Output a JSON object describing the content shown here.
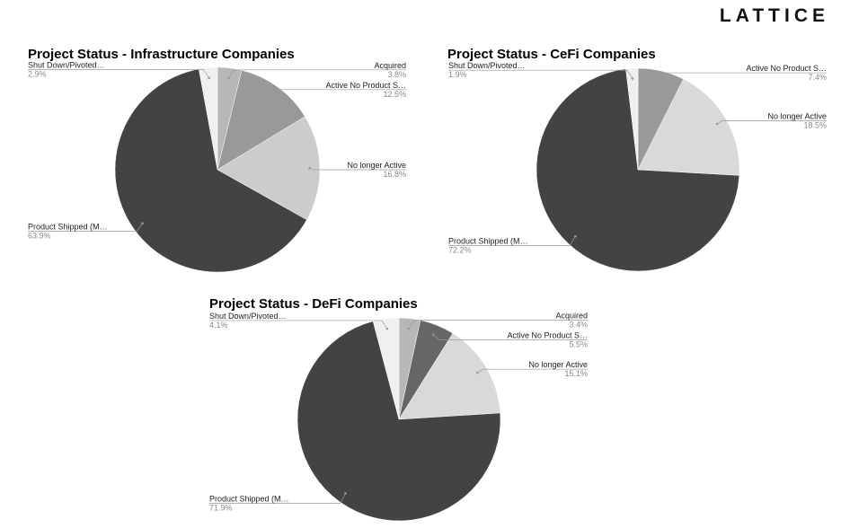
{
  "logo": "LATTICE",
  "chart_data": [
    {
      "type": "pie",
      "title": "Project Status - Infrastructure Companies",
      "categories": [
        "Acquired",
        "Active No Product S…",
        "No longer Active",
        "Product Shipped (M…",
        "Shut Down/Pivoted…"
      ],
      "values": [
        3.8,
        12.5,
        16.8,
        63.9,
        2.9
      ],
      "value_labels": [
        "3.8%",
        "12.5%",
        "16.8%",
        "63.9%",
        "2.9%"
      ],
      "colors": [
        "#b7b7b7",
        "#999999",
        "#cccccc",
        "#434343",
        "#efefef"
      ]
    },
    {
      "type": "pie",
      "title": "Project Status - CeFi Companies",
      "categories": [
        "Active No Product S…",
        "No longer Active",
        "Product Shipped (M…",
        "Shut Down/Pivoted…"
      ],
      "values": [
        7.4,
        18.5,
        72.2,
        1.9
      ],
      "value_labels": [
        "7.4%",
        "18.5%",
        "72.2%",
        "1.9%"
      ],
      "colors": [
        "#999999",
        "#d9d9d9",
        "#434343",
        "#efefef"
      ]
    },
    {
      "type": "pie",
      "title": "Project Status - DeFi Companies",
      "categories": [
        "Acquired",
        "Active No Product S…",
        "No longer Active",
        "Product Shipped (M…",
        "Shut Down/Pivoted…"
      ],
      "values": [
        3.4,
        5.5,
        15.1,
        71.9,
        4.1
      ],
      "value_labels": [
        "3.4%",
        "5.5%",
        "15.1%",
        "71.9%",
        "4.1%"
      ],
      "colors": [
        "#b7b7b7",
        "#666666",
        "#d9d9d9",
        "#434343",
        "#efefef"
      ]
    }
  ]
}
